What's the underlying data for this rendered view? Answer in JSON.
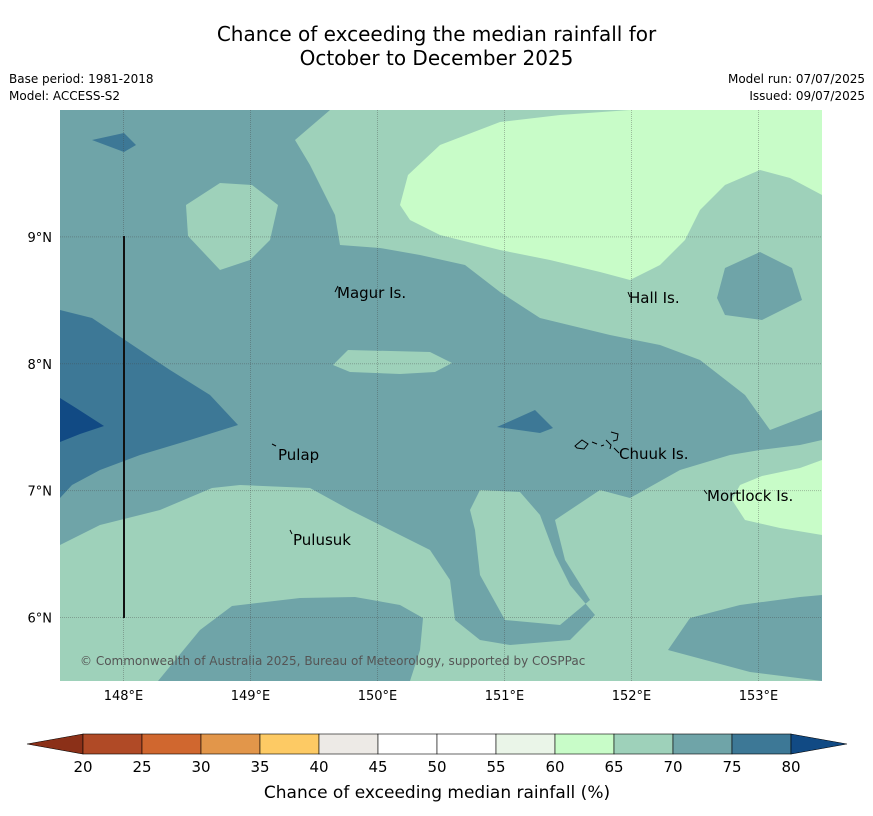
{
  "header": {
    "title_line1": "Chance of exceeding the median rainfall for",
    "title_line2": "October to December 2025",
    "base_period": "Base period: 1981-2018",
    "model": "Model: ACCESS-S2",
    "model_run": "Model run: 07/07/2025",
    "issued": "Issued: 09/07/2025"
  },
  "map": {
    "lon_range": [
      147.5,
      153.5
    ],
    "lat_range": [
      5.5,
      10.0
    ],
    "lon_ticks": [
      "148°E",
      "149°E",
      "150°E",
      "151°E",
      "152°E",
      "153°E"
    ],
    "lat_ticks": [
      "6°N",
      "7°N",
      "8°N",
      "9°N"
    ],
    "grid": true,
    "places": [
      "Magur Is.",
      "Hall Is.",
      "Pulap",
      "Chuuk Is.",
      "Mortlock Is.",
      "Pulusuk"
    ],
    "copyright": "© Commonwealth of Australia 2025, Bureau of Meteorology, supported by COSPPac"
  },
  "colorbar": {
    "title": "Chance of exceeding median rainfall (%)",
    "ticks": [
      "20",
      "25",
      "30",
      "35",
      "40",
      "45",
      "50",
      "55",
      "60",
      "65",
      "70",
      "75",
      "80"
    ],
    "colors": {
      "below_20": "#8b3018",
      "20_25": "#b04a26",
      "25_30": "#d0672f",
      "30_35": "#e2964a",
      "35_40": "#fdca64",
      "40_45": "#edeae6",
      "45_50": "#ffffff",
      "50_55": "#ffffff",
      "55_60": "#eaf5e8",
      "60_65": "#c8fcc8",
      "65_70": "#9ed1ba",
      "70_75": "#6fa4a8",
      "75_80": "#3d7896",
      "above_80": "#114a84"
    }
  }
}
